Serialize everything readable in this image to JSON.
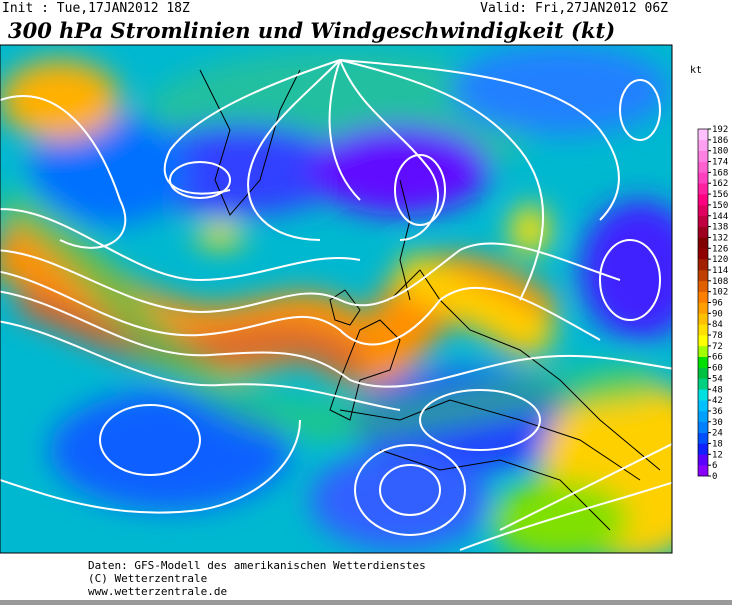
{
  "header": {
    "init": "Init : Tue,17JAN2012 18Z",
    "valid": "Valid: Fri,27JAN2012 06Z",
    "title": "300 hPa Stromlinien und Windgeschwindigkeit (kt)"
  },
  "colorbar": {
    "unit": "kt",
    "ticks": [
      0,
      6,
      12,
      18,
      24,
      30,
      36,
      42,
      48,
      54,
      60,
      66,
      72,
      78,
      84,
      90,
      96,
      102,
      108,
      114,
      120,
      126,
      132,
      138,
      144,
      150,
      156,
      162,
      168,
      174,
      180,
      186,
      192
    ],
    "colors": [
      "#8a00ff",
      "#5a00ff",
      "#1020ff",
      "#0050ff",
      "#0080ff",
      "#00a0ff",
      "#00c0ff",
      "#00e0e0",
      "#00d080",
      "#00c040",
      "#00e000",
      "#a0ff00",
      "#ffff00",
      "#ffe000",
      "#ffc000",
      "#ffa000",
      "#ff8000",
      "#e06000",
      "#c04000",
      "#a02000",
      "#900000",
      "#800000",
      "#a00020",
      "#c00040",
      "#e00060",
      "#ff0080",
      "#ff20a0",
      "#ff40c0",
      "#ff60d0",
      "#ff80e0",
      "#ffa0f0",
      "#ffc0ff"
    ]
  },
  "footer": {
    "lines": [
      "Daten: GFS-Modell des amerikanischen Wetterdienstes",
      "(C) Wetterzentrale",
      "www.wetterzentrale.de"
    ]
  }
}
